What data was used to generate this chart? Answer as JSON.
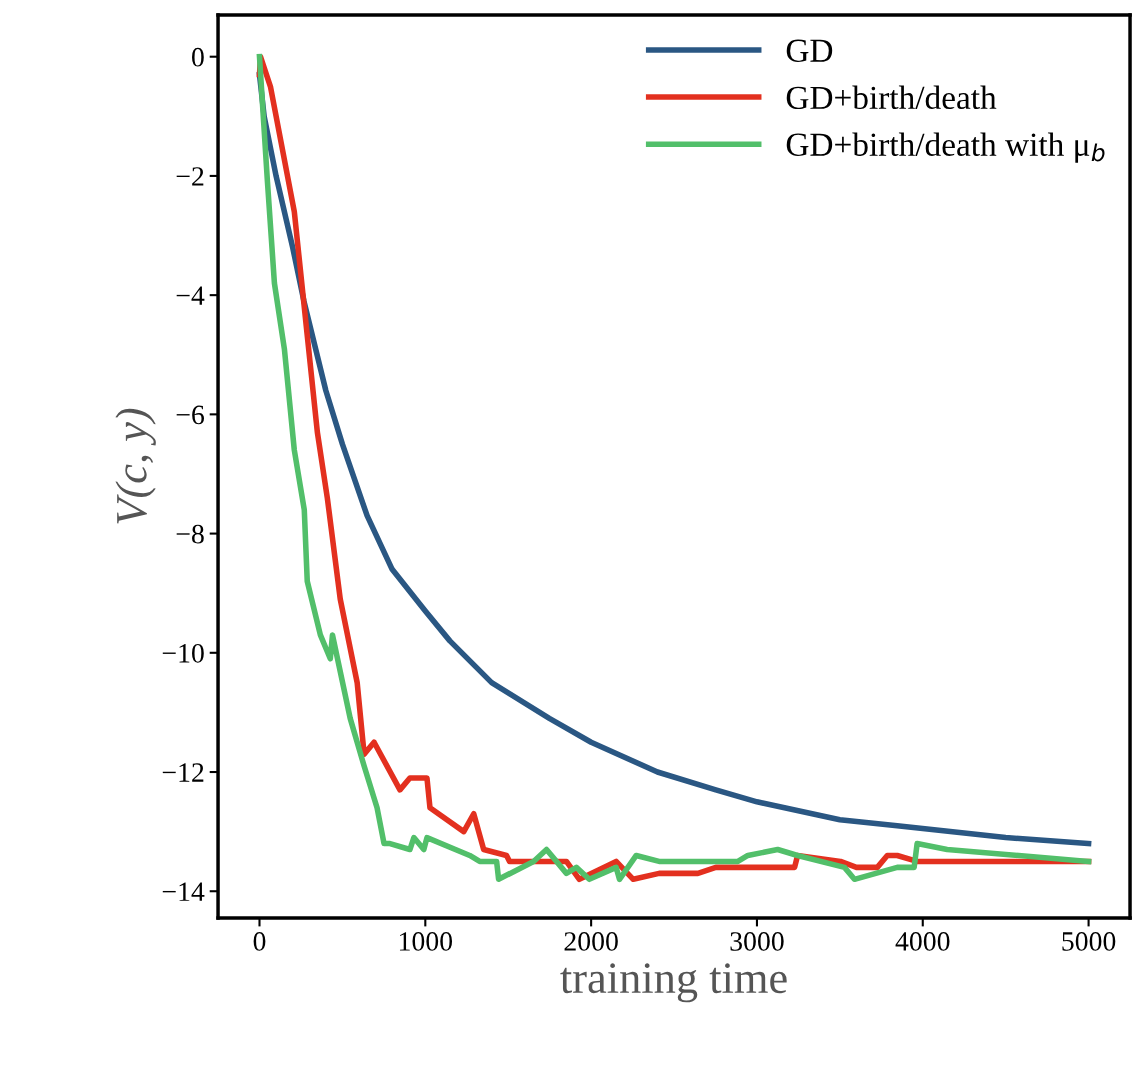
{
  "chart_data": {
    "type": "line",
    "xlabel": "training time",
    "ylabel": "V(c, y)",
    "xlim": [
      -250,
      5250
    ],
    "ylim": [
      -14.45,
      0.7
    ],
    "xticks": [
      0,
      1000,
      2000,
      3000,
      4000,
      5000
    ],
    "yticks": [
      {
        "value": 0,
        "label": "0"
      },
      {
        "value": -2,
        "label": "−2"
      },
      {
        "value": -4,
        "label": "−4"
      },
      {
        "value": -6,
        "label": "−6"
      },
      {
        "value": -8,
        "label": "−8"
      },
      {
        "value": -10,
        "label": "−10"
      },
      {
        "value": -12,
        "label": "−12"
      },
      {
        "value": -14,
        "label": "−14"
      }
    ],
    "grid": false,
    "legend": "top right",
    "marker": "none",
    "line_style": "solid",
    "series": [
      {
        "name": "GD",
        "color": "#2a5783",
        "x": [
          0,
          28,
          100,
          200,
          268,
          400,
          500,
          649,
          800,
          1000,
          1148,
          1400,
          1748,
          2000,
          2400,
          2752,
          3000,
          3500,
          3846,
          4500,
          5000
        ],
        "values": [
          -0.3,
          -1.0,
          -2.0,
          -3.2,
          -4.1,
          -5.6,
          -6.5,
          -7.7,
          -8.6,
          -9.3,
          -9.8,
          -10.5,
          -11.1,
          -11.5,
          -12.0,
          -12.3,
          -12.5,
          -12.8,
          -12.9,
          -13.1,
          -13.2
        ]
      },
      {
        "name": "GD+birth/death",
        "color": "#e3301f",
        "x": [
          0,
          6,
          66,
          210,
          270,
          349,
          409,
          487,
          589,
          631,
          691,
          847,
          907,
          1010,
          1028,
          1232,
          1292,
          1352,
          1490,
          1508,
          1851,
          1929,
          2151,
          2254,
          2410,
          2644,
          2752,
          3227,
          3245,
          3504,
          3600,
          3726,
          3786,
          3846,
          3966,
          5000
        ],
        "values": [
          -0.3,
          0.0,
          -0.5,
          -2.6,
          -4.2,
          -6.3,
          -7.4,
          -9.1,
          -10.5,
          -11.7,
          -11.5,
          -12.3,
          -12.1,
          -12.1,
          -12.6,
          -13.0,
          -12.7,
          -13.3,
          -13.4,
          -13.5,
          -13.5,
          -13.8,
          -13.5,
          -13.8,
          -13.7,
          -13.7,
          -13.6,
          -13.6,
          -13.4,
          -13.5,
          -13.6,
          -13.6,
          -13.4,
          -13.4,
          -13.5,
          -13.5
        ]
      },
      {
        "name": "GD+birth/death with μ$_{b}$",
        "color": "#52bf6a",
        "x": [
          0,
          48,
          90,
          150,
          210,
          270,
          288,
          367,
          427,
          440,
          547,
          631,
          709,
          751,
          787,
          907,
          931,
          991,
          1010,
          1268,
          1328,
          1430,
          1442,
          1653,
          1731,
          1851,
          1911,
          1989,
          2151,
          2171,
          2272,
          2410,
          2644,
          2885,
          2945,
          3125,
          3245,
          3528,
          3588,
          3846,
          3948,
          3966,
          4147,
          5000
        ],
        "values": [
          0.0,
          -2.1,
          -3.8,
          -4.9,
          -6.6,
          -7.6,
          -8.8,
          -9.7,
          -10.1,
          -9.7,
          -11.1,
          -11.9,
          -12.6,
          -13.2,
          -13.2,
          -13.3,
          -13.1,
          -13.3,
          -13.1,
          -13.4,
          -13.5,
          -13.5,
          -13.8,
          -13.5,
          -13.3,
          -13.7,
          -13.6,
          -13.8,
          -13.6,
          -13.8,
          -13.4,
          -13.5,
          -13.5,
          -13.5,
          -13.4,
          -13.3,
          -13.4,
          -13.6,
          -13.8,
          -13.6,
          -13.6,
          -13.2,
          -13.3,
          -13.5
        ]
      }
    ]
  }
}
